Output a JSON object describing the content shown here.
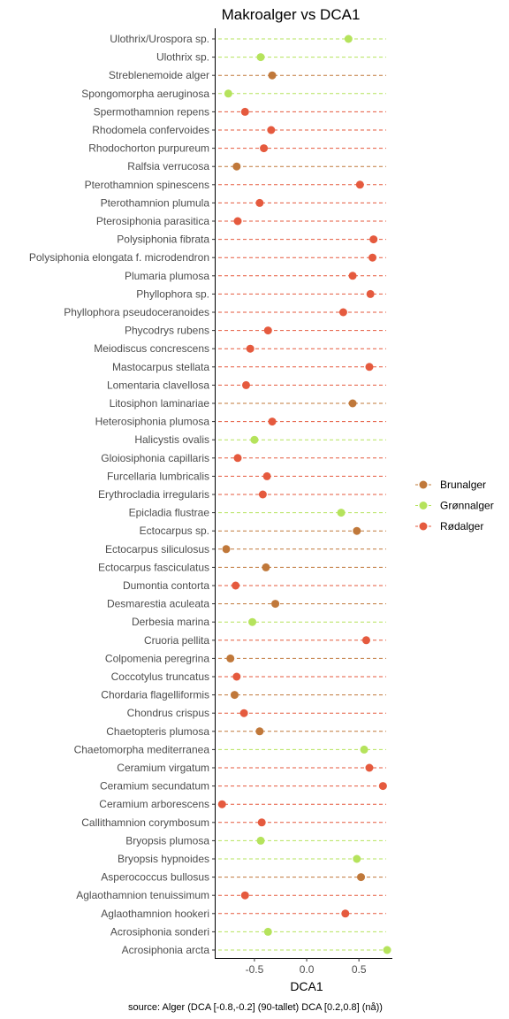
{
  "chart_data": {
    "type": "scatter",
    "title": "Makroalger vs DCA1",
    "xlabel": "DCA1",
    "ylabel": "",
    "caption": "source: Alger (DCA [-0.8,-0.2] (90-tallet) DCA [0.2,0.8] (nå))",
    "xlim": [
      -0.88,
      0.82
    ],
    "xticks": [
      -0.5,
      0.0,
      0.5
    ],
    "xtick_labels": [
      "-0.5",
      "0.0",
      "0.5"
    ],
    "grid": false,
    "legend": {
      "position": "right",
      "entries": [
        "Brunalger",
        "Grønnalger",
        "Rødalger"
      ]
    },
    "colors": {
      "Brunalger": "#c0783a",
      "Grønnalger": "#b5e35c",
      "Rødalger": "#e55a3e"
    },
    "points": [
      {
        "name": "Ulothrix/Urospora sp.",
        "group": "Grønnalger",
        "x": 0.4
      },
      {
        "name": "Ulothrix sp.",
        "group": "Grønnalger",
        "x": -0.44
      },
      {
        "name": "Streblenemoide alger",
        "group": "Brunalger",
        "x": -0.33
      },
      {
        "name": "Spongomorpha aeruginosa",
        "group": "Grønnalger",
        "x": -0.75
      },
      {
        "name": "Spermothamnion repens",
        "group": "Rødalger",
        "x": -0.59
      },
      {
        "name": "Rhodomela confervoides",
        "group": "Rødalger",
        "x": -0.34
      },
      {
        "name": "Rhodochorton purpureum",
        "group": "Rødalger",
        "x": -0.41
      },
      {
        "name": "Ralfsia verrucosa",
        "group": "Brunalger",
        "x": -0.67
      },
      {
        "name": "Pterothamnion spinescens",
        "group": "Rødalger",
        "x": 0.51
      },
      {
        "name": "Pterothamnion plumula",
        "group": "Rødalger",
        "x": -0.45
      },
      {
        "name": "Pterosiphonia parasitica",
        "group": "Rødalger",
        "x": -0.66
      },
      {
        "name": "Polysiphonia fibrata",
        "group": "Rødalger",
        "x": 0.64
      },
      {
        "name": "Polysiphonia elongata f. microdendron",
        "group": "Rødalger",
        "x": 0.63
      },
      {
        "name": "Plumaria plumosa",
        "group": "Rødalger",
        "x": 0.44
      },
      {
        "name": "Phyllophora sp.",
        "group": "Rødalger",
        "x": 0.61
      },
      {
        "name": "Phyllophora pseudoceranoides",
        "group": "Rødalger",
        "x": 0.35
      },
      {
        "name": "Phycodrys rubens",
        "group": "Rødalger",
        "x": -0.37
      },
      {
        "name": "Meiodiscus concrescens",
        "group": "Rødalger",
        "x": -0.54
      },
      {
        "name": "Mastocarpus stellata",
        "group": "Rødalger",
        "x": 0.6
      },
      {
        "name": "Lomentaria clavellosa",
        "group": "Rødalger",
        "x": -0.58
      },
      {
        "name": "Litosiphon laminariae",
        "group": "Brunalger",
        "x": 0.44
      },
      {
        "name": "Heterosiphonia plumosa",
        "group": "Rødalger",
        "x": -0.33
      },
      {
        "name": "Halicystis ovalis",
        "group": "Grønnalger",
        "x": -0.5
      },
      {
        "name": "Gloiosiphonia capillaris",
        "group": "Rødalger",
        "x": -0.66
      },
      {
        "name": "Furcellaria lumbricalis",
        "group": "Rødalger",
        "x": -0.38
      },
      {
        "name": "Erythrocladia irregularis",
        "group": "Rødalger",
        "x": -0.42
      },
      {
        "name": "Epicladia flustrae",
        "group": "Grønnalger",
        "x": 0.33
      },
      {
        "name": "Ectocarpus sp.",
        "group": "Brunalger",
        "x": 0.48
      },
      {
        "name": "Ectocarpus siliculosus",
        "group": "Brunalger",
        "x": -0.77
      },
      {
        "name": "Ectocarpus fasciculatus",
        "group": "Brunalger",
        "x": -0.39
      },
      {
        "name": "Dumontia contorta",
        "group": "Rødalger",
        "x": -0.68
      },
      {
        "name": "Desmarestia aculeata",
        "group": "Brunalger",
        "x": -0.3
      },
      {
        "name": "Derbesia marina",
        "group": "Grønnalger",
        "x": -0.52
      },
      {
        "name": "Cruoria pellita",
        "group": "Rødalger",
        "x": 0.57
      },
      {
        "name": "Colpomenia peregrina",
        "group": "Brunalger",
        "x": -0.73
      },
      {
        "name": "Coccotylus truncatus",
        "group": "Rødalger",
        "x": -0.67
      },
      {
        "name": "Chordaria flagelliformis",
        "group": "Brunalger",
        "x": -0.69
      },
      {
        "name": "Chondrus crispus",
        "group": "Rødalger",
        "x": -0.6
      },
      {
        "name": "Chaetopteris plumosa",
        "group": "Brunalger",
        "x": -0.45
      },
      {
        "name": "Chaetomorpha mediterranea",
        "group": "Grønnalger",
        "x": 0.55
      },
      {
        "name": "Ceramium virgatum",
        "group": "Rødalger",
        "x": 0.6
      },
      {
        "name": "Ceramium secundatum",
        "group": "Rødalger",
        "x": 0.73
      },
      {
        "name": "Ceramium arborescens",
        "group": "Rødalger",
        "x": -0.81
      },
      {
        "name": "Callithamnion corymbosum",
        "group": "Rødalger",
        "x": -0.43
      },
      {
        "name": "Bryopsis plumosa",
        "group": "Grønnalger",
        "x": -0.44
      },
      {
        "name": "Bryopsis hypnoides",
        "group": "Grønnalger",
        "x": 0.48
      },
      {
        "name": "Asperococcus bullosus",
        "group": "Brunalger",
        "x": 0.52
      },
      {
        "name": "Aglaothamnion tenuissimum",
        "group": "Rødalger",
        "x": -0.59
      },
      {
        "name": "Aglaothamnion hookeri",
        "group": "Rødalger",
        "x": 0.37
      },
      {
        "name": "Acrosiphonia sonderi",
        "group": "Grønnalger",
        "x": -0.37
      },
      {
        "name": "Acrosiphonia arcta",
        "group": "Grønnalger",
        "x": 0.77
      }
    ]
  }
}
